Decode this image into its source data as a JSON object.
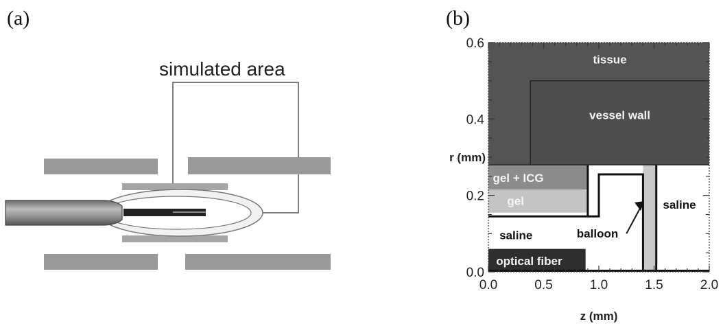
{
  "panel_a": {
    "label": "(a)",
    "simulated_area_label": "simulated area"
  },
  "panel_b": {
    "label": "(b)",
    "regions": {
      "tissue": "tissue",
      "vessel_wall": "vessel wall",
      "gel_icg": "gel + ICG",
      "gel": "gel",
      "saline_left": "saline",
      "saline_right": "saline",
      "balloon": "balloon",
      "optical_fiber": "optical fiber"
    },
    "axes": {
      "xlabel": "z (mm)",
      "ylabel": "r (mm)",
      "xticks": [
        "0.0",
        "0.5",
        "1.0",
        "1.5",
        "2.0"
      ],
      "yticks": [
        "0.0",
        "0.2",
        "0.4",
        "0.6"
      ],
      "xlim": [
        0,
        2
      ],
      "ylim": [
        0,
        0.6
      ]
    },
    "colors": {
      "tissue": "#545454",
      "vessel_wall": "#4e4e4e",
      "gel_icg": "#8c8c8c",
      "gel": "#c4c4c4",
      "balloon": "#c9c9c9",
      "fiber": "#2e2e2e"
    }
  }
}
